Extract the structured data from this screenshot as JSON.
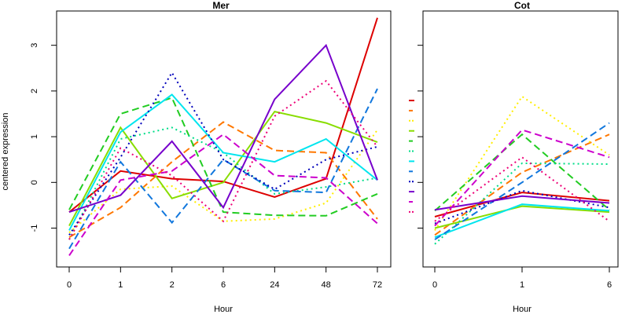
{
  "chart_data": [
    {
      "type": "line",
      "title": "Mer",
      "xlabel": "Hour",
      "ylabel": "centered expression",
      "categories": [
        "0",
        "1",
        "2",
        "6",
        "24",
        "48",
        "72"
      ],
      "ylim": [
        -1.85,
        3.75
      ],
      "yticks": [
        -1,
        0,
        1,
        2,
        3
      ],
      "grid": false,
      "series": [
        {
          "color": "#dd0000",
          "dash": "solid",
          "values": [
            -0.65,
            0.25,
            0.08,
            0.02,
            -0.32,
            0.08,
            3.6
          ]
        },
        {
          "color": "#ff7700",
          "dash": "dashed",
          "values": [
            -1.2,
            -0.55,
            0.45,
            1.32,
            0.7,
            0.65,
            -0.8
          ]
        },
        {
          "color": "#ffee00",
          "dash": "dotted",
          "values": [
            -1.1,
            -0.15,
            -0.08,
            -0.85,
            -0.8,
            -0.45,
            1.15
          ]
        },
        {
          "color": "#88dd00",
          "dash": "solid",
          "values": [
            -0.95,
            1.2,
            -0.35,
            0.0,
            1.55,
            1.3,
            0.88
          ]
        },
        {
          "color": "#22cc22",
          "dash": "dashed",
          "values": [
            -0.6,
            1.5,
            1.85,
            -0.65,
            -0.72,
            -0.73,
            -0.25
          ]
        },
        {
          "color": "#00dd88",
          "dash": "dotted",
          "values": [
            -1.25,
            0.95,
            1.2,
            0.65,
            -0.25,
            -0.1,
            0.1
          ]
        },
        {
          "color": "#00e5ee",
          "dash": "solid",
          "values": [
            -1.05,
            1.1,
            1.92,
            0.65,
            0.45,
            0.95,
            0.05
          ]
        },
        {
          "color": "#1177dd",
          "dash": "dashed",
          "values": [
            -1.45,
            0.45,
            -0.88,
            0.5,
            -0.18,
            -0.22,
            2.05
          ]
        },
        {
          "color": "#0000bb",
          "dash": "dotted",
          "values": [
            -1.15,
            0.55,
            2.4,
            0.5,
            -0.15,
            0.5,
            0.78
          ]
        },
        {
          "color": "#7700cc",
          "dash": "solid",
          "values": [
            -0.65,
            -0.28,
            0.9,
            -0.55,
            1.82,
            3.0,
            0.05
          ]
        },
        {
          "color": "#cc00cc",
          "dash": "dashed",
          "values": [
            -1.6,
            0.05,
            0.25,
            1.05,
            0.15,
            0.1,
            -0.9
          ]
        },
        {
          "color": "#ee0077",
          "dash": "dotted",
          "values": [
            -1.25,
            0.75,
            0.15,
            -0.85,
            1.45,
            2.22,
            0.78
          ]
        }
      ]
    },
    {
      "type": "line",
      "title": "Cot",
      "xlabel": "Hour",
      "categories": [
        "0",
        "1",
        "6"
      ],
      "ylim": [
        -1.85,
        3.75
      ],
      "grid": false,
      "series": [
        {
          "color": "#dd0000",
          "dash": "solid",
          "values": [
            -0.75,
            -0.22,
            -0.4
          ]
        },
        {
          "color": "#ff7700",
          "dash": "dashed",
          "values": [
            -1.15,
            0.22,
            1.05
          ]
        },
        {
          "color": "#ffee00",
          "dash": "dotted",
          "values": [
            -1.05,
            1.88,
            0.6
          ]
        },
        {
          "color": "#88dd00",
          "dash": "solid",
          "values": [
            -1.0,
            -0.52,
            -0.65
          ]
        },
        {
          "color": "#22cc22",
          "dash": "dashed",
          "values": [
            -0.62,
            1.05,
            -0.6
          ]
        },
        {
          "color": "#00dd88",
          "dash": "dotted",
          "values": [
            -1.35,
            0.42,
            0.4
          ]
        },
        {
          "color": "#00e5ee",
          "dash": "solid",
          "values": [
            -1.2,
            -0.48,
            -0.62
          ]
        },
        {
          "color": "#1177dd",
          "dash": "dashed",
          "values": [
            -1.25,
            0.0,
            1.3
          ]
        },
        {
          "color": "#0000bb",
          "dash": "dotted",
          "values": [
            -0.9,
            -0.18,
            -0.55
          ]
        },
        {
          "color": "#7700cc",
          "dash": "solid",
          "values": [
            -0.6,
            -0.3,
            -0.45
          ]
        },
        {
          "color": "#cc00cc",
          "dash": "dashed",
          "values": [
            -0.95,
            1.15,
            0.55
          ]
        },
        {
          "color": "#ee0077",
          "dash": "dotted",
          "values": [
            -0.85,
            0.55,
            -0.85
          ]
        }
      ]
    }
  ]
}
